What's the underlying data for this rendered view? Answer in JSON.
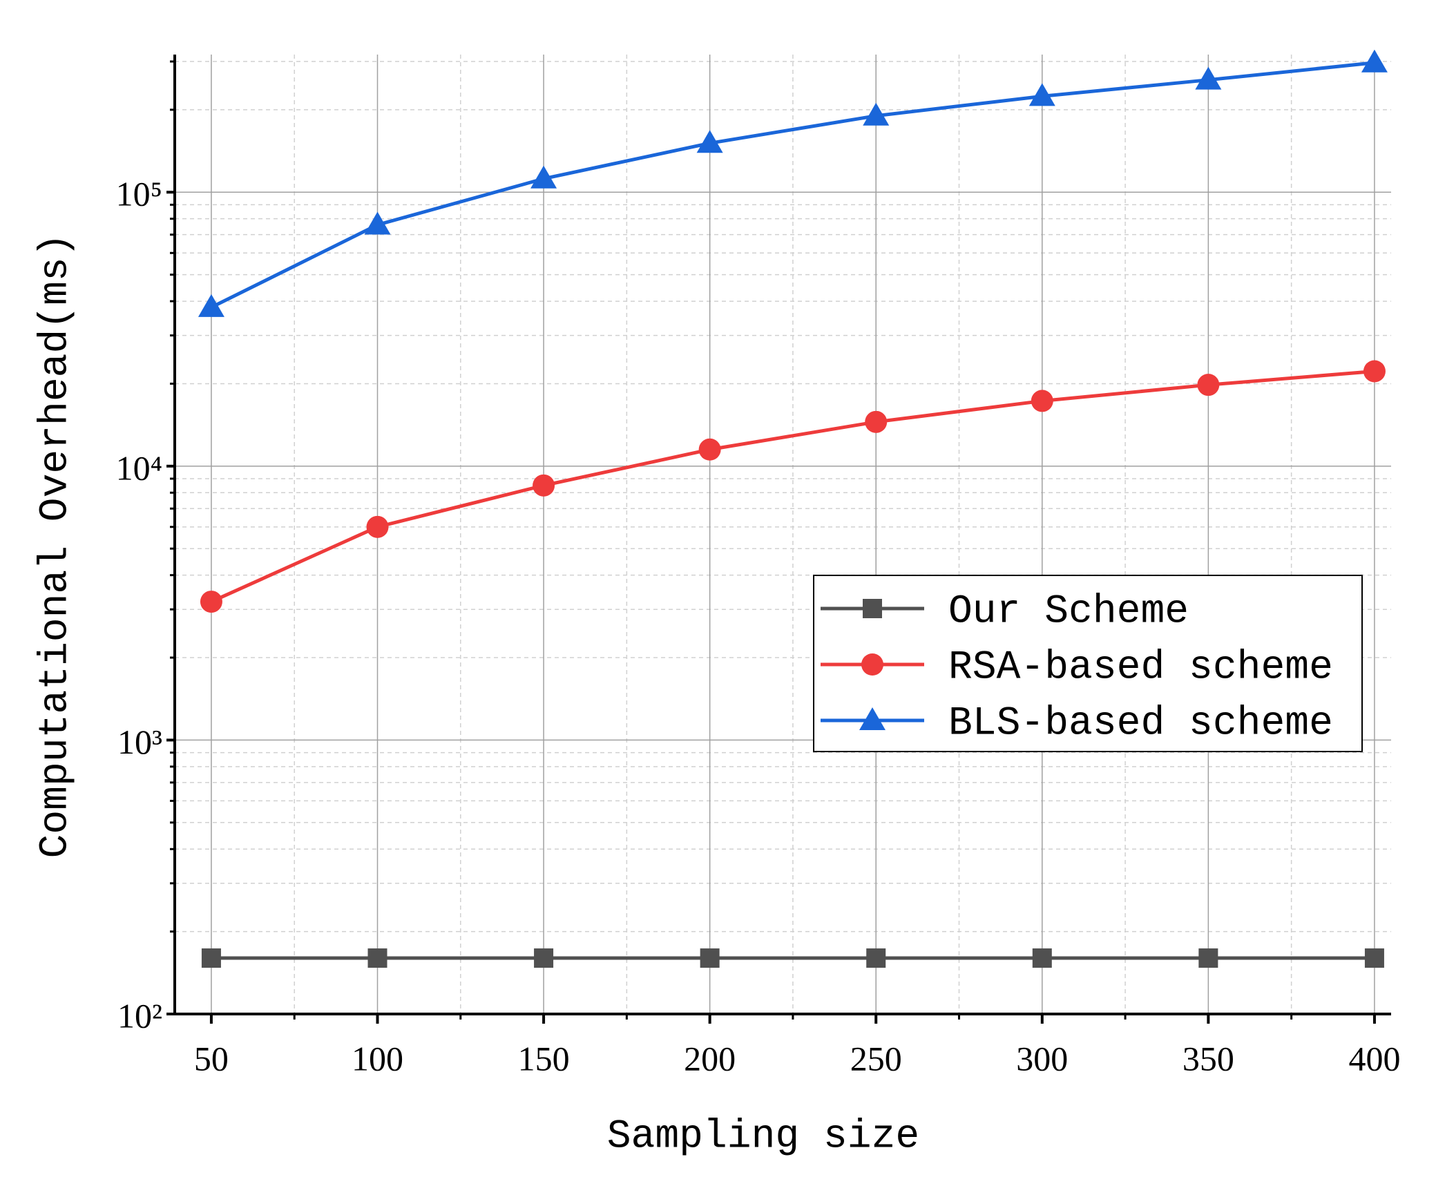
{
  "chart_data": {
    "type": "line",
    "x_label": "Sampling size",
    "y_label": "Computational Overhead(ms)",
    "x": [
      50,
      100,
      150,
      200,
      250,
      300,
      350,
      400
    ],
    "series": [
      {
        "name": "Our Scheme",
        "color": "#505050",
        "marker": "square",
        "values": [
          160,
          160,
          160,
          160,
          160,
          160,
          160,
          160
        ]
      },
      {
        "name": "RSA-based scheme",
        "color": "#ee3b3b",
        "marker": "circle",
        "values": [
          3200,
          6000,
          8500,
          11500,
          14500,
          17300,
          19800,
          22200
        ]
      },
      {
        "name": "BLS-based scheme",
        "color": "#1a66d9",
        "marker": "triangle",
        "values": [
          38000,
          76000,
          112000,
          151000,
          190000,
          224000,
          257000,
          297000
        ]
      }
    ],
    "xlim": [
      39,
      405
    ],
    "xticks": [
      50,
      100,
      150,
      200,
      250,
      300,
      350,
      400
    ],
    "xminor": [
      75,
      125,
      175,
      225,
      275,
      325,
      375
    ],
    "ylim": [
      100,
      318000
    ],
    "ylog": true,
    "yticks": [
      {
        "value": 100,
        "label": "10²"
      },
      {
        "value": 1000,
        "label": "10³"
      },
      {
        "value": 10000,
        "label": "10⁴"
      },
      {
        "value": 100000,
        "label": "10⁵"
      }
    ],
    "yminor": [
      200,
      300,
      400,
      500,
      600,
      700,
      800,
      900,
      2000,
      3000,
      4000,
      5000,
      6000,
      7000,
      8000,
      9000,
      20000,
      30000,
      40000,
      50000,
      60000,
      70000,
      80000,
      90000,
      200000,
      300000
    ],
    "grid": true,
    "legend": "center right"
  }
}
